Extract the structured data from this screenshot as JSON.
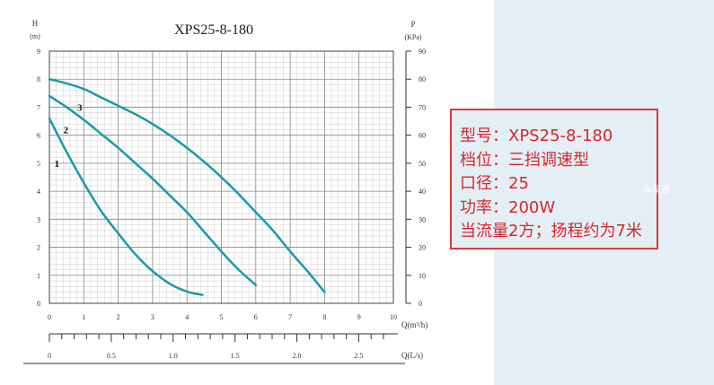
{
  "chart_data": {
    "type": "line",
    "title": "XPS25-8-180",
    "left_axis": {
      "label": "H",
      "unit": "(m)",
      "ticks": [
        "0",
        "1",
        "2",
        "3",
        "4",
        "5",
        "6",
        "7",
        "8",
        "9"
      ],
      "range": [
        0,
        9
      ]
    },
    "right_axis": {
      "label": "P",
      "unit": "(KPa)",
      "ticks": [
        "0",
        "10",
        "20",
        "30",
        "40",
        "50",
        "60",
        "70",
        "80",
        "90"
      ],
      "range": [
        0,
        90
      ]
    },
    "x_axis": {
      "label": "Q(m³/h)",
      "ticks": [
        "0",
        "1",
        "2",
        "3",
        "4",
        "5",
        "6",
        "7",
        "8",
        "9",
        "10"
      ],
      "range": [
        0,
        10
      ]
    },
    "x2_axis": {
      "label": "Q(L/s)",
      "ticks": [
        "0",
        "0.5",
        "1.0",
        "1.5",
        "2.0",
        "2.5"
      ],
      "range": [
        0,
        2.78
      ]
    },
    "grid": true,
    "series": [
      {
        "name": "1",
        "x": [
          0,
          0.5,
          1,
          1.5,
          2,
          2.5,
          3,
          3.5,
          4,
          4.45
        ],
        "y": [
          6.6,
          5.4,
          4.3,
          3.3,
          2.5,
          1.75,
          1.15,
          0.7,
          0.42,
          0.3
        ]
      },
      {
        "name": "2",
        "x": [
          0,
          0.5,
          1,
          1.5,
          2,
          2.5,
          3,
          3.5,
          4,
          4.5,
          5,
          5.5,
          6
        ],
        "y": [
          7.4,
          7.0,
          6.55,
          6.05,
          5.55,
          5.0,
          4.45,
          3.85,
          3.25,
          2.55,
          1.85,
          1.2,
          0.65
        ]
      },
      {
        "name": "3",
        "x": [
          0,
          0.5,
          1,
          1.5,
          2,
          2.5,
          3,
          3.5,
          4,
          4.5,
          5,
          5.5,
          6,
          6.5,
          7,
          7.5,
          8
        ],
        "y": [
          8.0,
          7.85,
          7.65,
          7.35,
          7.05,
          6.75,
          6.4,
          6.0,
          5.55,
          5.05,
          4.5,
          3.9,
          3.25,
          2.6,
          1.85,
          1.15,
          0.4
        ]
      }
    ],
    "curve_color": "#1a9ba6"
  },
  "specs": {
    "model": "型号：XPS25-8-180",
    "speed": "档位：三挡调速型",
    "caliber": "口径：25",
    "power": "功率：200W",
    "note": "当流量2方；扬程约为7米"
  },
  "watermark": "水泵圈",
  "colors": {
    "accent": "#d8262b",
    "panel_bg": "#e3eff4"
  }
}
